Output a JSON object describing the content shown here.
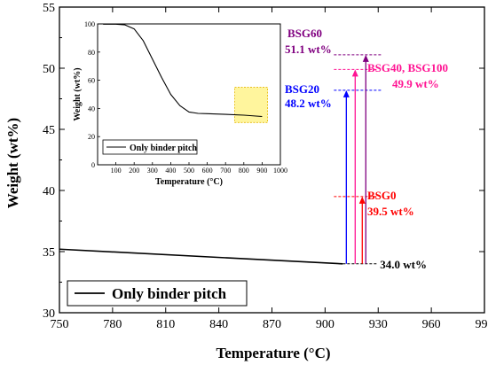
{
  "chart_data": {
    "type": "line",
    "xlabel": "Temperature (°C)",
    "ylabel": "Weight (wt%)",
    "xlim": [
      750,
      990
    ],
    "ylim": [
      30,
      55
    ],
    "x_ticks": [
      750,
      780,
      810,
      840,
      870,
      900,
      930,
      960,
      990
    ],
    "y_ticks": [
      30,
      35,
      40,
      45,
      50,
      55
    ],
    "grid": false,
    "legend": {
      "position": "bottom-left",
      "entries": [
        "Only binder pitch"
      ]
    },
    "series": [
      {
        "name": "Only binder pitch",
        "x": [
          750,
          910
        ],
        "y": [
          35.2,
          34.0
        ],
        "color": "#000000"
      }
    ],
    "base_label": "34.0 wt%",
    "base_value": 34.0,
    "annotations": [
      {
        "name": "BSG0",
        "value_label": "39.5 wt%",
        "x": 921,
        "y": 39.5,
        "color": "#ff0000"
      },
      {
        "name": "BSG20",
        "value_label": "48.2 wt%",
        "x": 912,
        "y": 48.2,
        "color": "#0000ff"
      },
      {
        "name": "BSG40, BSG100",
        "value_label": "49.9 wt%",
        "x": 917,
        "y": 49.9,
        "color": "#ff1493"
      },
      {
        "name": "BSG60",
        "value_label": "51.1 wt%",
        "x": 923,
        "y": 51.1,
        "color": "#800080"
      }
    ],
    "inset": {
      "type": "line",
      "xlabel": "Temperature (°C)",
      "ylabel": "Weight (wt%)",
      "xlim": [
        0,
        1000
      ],
      "ylim": [
        0,
        100
      ],
      "x_ticks": [
        100,
        200,
        300,
        400,
        500,
        600,
        700,
        800,
        900,
        1000
      ],
      "y_ticks": [
        0,
        20,
        40,
        60,
        80,
        100
      ],
      "legend": {
        "position": "bottom-left",
        "entries": [
          "Only binder pitch"
        ]
      },
      "series": [
        {
          "name": "Only binder pitch",
          "x": [
            30,
            100,
            150,
            200,
            250,
            300,
            350,
            400,
            450,
            500,
            550,
            600,
            700,
            800,
            900
          ],
          "y": [
            99.8,
            99.8,
            99.3,
            96.5,
            88,
            75,
            62,
            50,
            42,
            37.5,
            36.5,
            36.3,
            35.8,
            35.2,
            34.3
          ]
        }
      ],
      "highlight": {
        "x": [
          750,
          930
        ],
        "y": [
          30,
          55
        ],
        "color": "#fff59d"
      }
    }
  }
}
